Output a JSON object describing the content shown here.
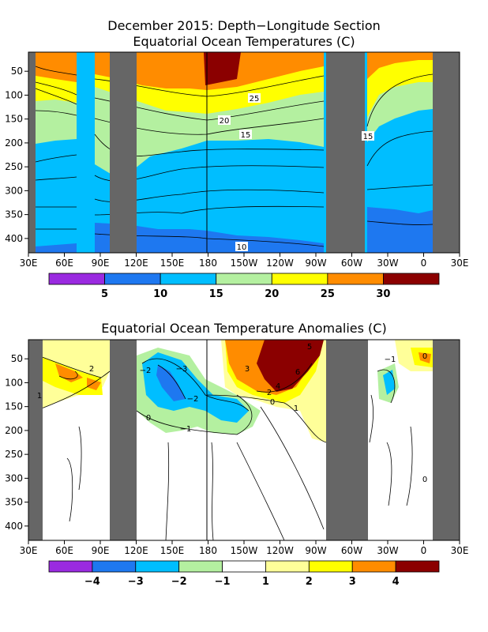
{
  "chart_data": [
    {
      "type": "heatmap",
      "title": "December 2015: Depth−Longitude Section",
      "subtitle": "Equatorial Ocean Temperatures (C)",
      "x_ticks": [
        "30E",
        "60E",
        "90E",
        "120E",
        "150E",
        "180",
        "150W",
        "120W",
        "90W",
        "60W",
        "30W",
        "0",
        "30E"
      ],
      "y_ticks": [
        50,
        100,
        150,
        200,
        250,
        300,
        350,
        400
      ],
      "xlim": [
        30,
        390
      ],
      "ylim": [
        430,
        10
      ],
      "colorbar": {
        "bounds": [
          0,
          5,
          10,
          15,
          20,
          25,
          30,
          35
        ],
        "labels": [
          "5",
          "10",
          "15",
          "20",
          "25",
          "30"
        ],
        "colors": [
          "#9a2ae0",
          "#1e78f0",
          "#00beff",
          "#b4f0a0",
          "#ffff00",
          "#ff8c00",
          "#8b0000"
        ]
      },
      "contour_labels": [
        "25",
        "20",
        "15",
        "15",
        "10"
      ],
      "land_masks": [
        [
          30,
          45
        ],
        [
          97,
          120
        ],
        [
          253,
          283
        ],
        [
          337,
          357
        ]
      ],
      "depth_profile": [
        {
          "depth": 10,
          "t": 29
        },
        {
          "depth": 40,
          "t": 28
        },
        {
          "depth": 70,
          "t": 26
        },
        {
          "depth": 100,
          "t": 24
        },
        {
          "depth": 130,
          "t": 20
        },
        {
          "depth": 160,
          "t": 17
        },
        {
          "depth": 200,
          "t": 15
        },
        {
          "depth": 250,
          "t": 13
        },
        {
          "depth": 300,
          "t": 12
        },
        {
          "depth": 350,
          "t": 11
        },
        {
          "depth": 400,
          "t": 10
        },
        {
          "depth": 430,
          "t": 9
        }
      ]
    },
    {
      "type": "heatmap",
      "title": "Equatorial Ocean Temperature Anomalies (C)",
      "x_ticks": [
        "30E",
        "60E",
        "90E",
        "120E",
        "150E",
        "180",
        "150W",
        "120W",
        "90W",
        "60W",
        "30W",
        "0",
        "30E"
      ],
      "y_ticks": [
        50,
        100,
        150,
        200,
        250,
        300,
        350,
        400
      ],
      "xlim": [
        30,
        390
      ],
      "ylim": [
        430,
        10
      ],
      "colorbar": {
        "bounds": [
          -5,
          -4,
          -3,
          -2,
          -1,
          1,
          2,
          3,
          4,
          5
        ],
        "labels": [
          "−4",
          "−3",
          "−2",
          "−1",
          "1",
          "2",
          "3",
          "4"
        ],
        "colors": [
          "#9a2ae0",
          "#1e78f0",
          "#00beff",
          "#b4f0a0",
          "#ffffff",
          "#ffff99",
          "#ffff00",
          "#ff8c00",
          "#8b0000"
        ]
      },
      "contour_labels": [
        "2",
        "−2",
        "−3",
        "−2",
        "−1",
        "0",
        "5",
        "3",
        "6",
        "4",
        "2",
        "0",
        "1",
        "−1",
        "0",
        "1",
        "0"
      ],
      "land_masks": [
        [
          30,
          45
        ],
        [
          97,
          120
        ],
        [
          253,
          283
        ],
        [
          337,
          357
        ]
      ]
    }
  ]
}
